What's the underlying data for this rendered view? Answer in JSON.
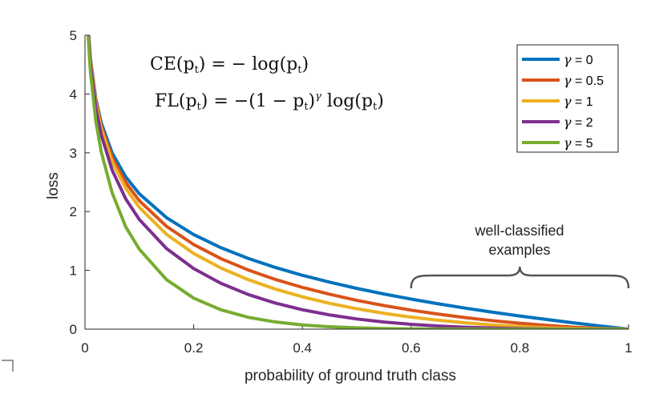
{
  "chart_data": {
    "type": "line",
    "title": "",
    "xlabel": "probability of ground truth class",
    "ylabel": "loss",
    "xlim": [
      0,
      1
    ],
    "ylim": [
      0,
      5
    ],
    "xticks": [
      0,
      0.2,
      0.4,
      0.6,
      0.8,
      1
    ],
    "xtick_labels": [
      "0",
      "0.2",
      "0.4",
      "0.6",
      "0.8",
      "1"
    ],
    "yticks": [
      0,
      1,
      2,
      3,
      4,
      5
    ],
    "ytick_labels": [
      "0",
      "1",
      "2",
      "3",
      "4",
      "5"
    ],
    "formula": {
      "ce": {
        "lhs": "CE(p",
        "sub": "t",
        "mid": ") = − log(p",
        "end": ")"
      },
      "fl": {
        "lhs": "FL(p",
        "sub": "t",
        "mid1": ") = −(1 − p",
        "mid2": ")",
        "sup": "γ",
        "mid3": " log(p",
        "end": ")"
      }
    },
    "annotation": {
      "line1": "well-classified",
      "line2": "examples",
      "x_range": [
        0.6,
        1.0
      ]
    },
    "legend_position": "top-right",
    "x": [
      0.006,
      0.01,
      0.02,
      0.03,
      0.05,
      0.075,
      0.1,
      0.15,
      0.2,
      0.25,
      0.3,
      0.35,
      0.4,
      0.45,
      0.5,
      0.55,
      0.6,
      0.65,
      0.7,
      0.75,
      0.8,
      0.85,
      0.9,
      0.95,
      1.0
    ],
    "series": [
      {
        "name": "γ = 0",
        "gamma_symbol": "γ",
        "gamma_value": "= 0",
        "color": "#0072bd",
        "values": [
          5.116,
          4.605,
          3.912,
          3.507,
          2.996,
          2.59,
          2.303,
          1.897,
          1.609,
          1.386,
          1.204,
          1.05,
          0.916,
          0.799,
          0.693,
          0.598,
          0.511,
          0.431,
          0.357,
          0.288,
          0.223,
          0.163,
          0.105,
          0.051,
          0.0
        ]
      },
      {
        "name": "γ = 0.5",
        "gamma_symbol": "γ",
        "gamma_value": "= 0.5",
        "color": "#d95319",
        "values": [
          5.1,
          4.582,
          3.873,
          3.454,
          2.92,
          2.495,
          2.184,
          1.749,
          1.439,
          1.2,
          1.007,
          0.846,
          0.71,
          0.593,
          0.49,
          0.401,
          0.323,
          0.255,
          0.196,
          0.144,
          0.1,
          0.063,
          0.033,
          0.011,
          0.0
        ]
      },
      {
        "name": "γ = 1",
        "gamma_symbol": "γ",
        "gamma_value": "= 1",
        "color": "#edb120",
        "values": [
          5.085,
          4.559,
          3.834,
          3.402,
          2.846,
          2.396,
          2.072,
          1.613,
          1.287,
          1.04,
          0.843,
          0.682,
          0.55,
          0.439,
          0.347,
          0.269,
          0.204,
          0.151,
          0.107,
          0.072,
          0.045,
          0.024,
          0.011,
          0.003,
          0.0
        ]
      },
      {
        "name": "γ = 2",
        "gamma_symbol": "γ",
        "gamma_value": "= 2",
        "color": "#7e2f8e",
        "values": [
          5.055,
          4.513,
          3.757,
          3.302,
          2.704,
          2.216,
          1.865,
          1.371,
          1.03,
          0.78,
          0.59,
          0.444,
          0.33,
          0.242,
          0.173,
          0.121,
          0.082,
          0.053,
          0.032,
          0.018,
          0.009,
          0.004,
          0.001,
          0.0,
          0.0
        ]
      },
      {
        "name": "γ = 5",
        "gamma_symbol": "γ",
        "gamma_value": "= 5",
        "color": "#77ac30",
        "values": [
          4.965,
          4.379,
          3.535,
          3.013,
          2.319,
          1.739,
          1.36,
          0.842,
          0.527,
          0.329,
          0.202,
          0.122,
          0.071,
          0.04,
          0.022,
          0.011,
          0.005,
          0.002,
          0.001,
          0.0,
          0.0,
          0.0,
          0.0,
          0.0,
          0.0
        ]
      }
    ]
  }
}
